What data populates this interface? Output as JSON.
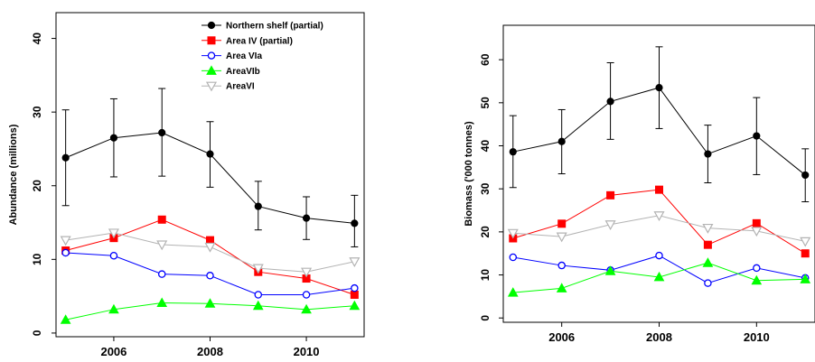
{
  "chart_data": [
    {
      "type": "line",
      "ylabel": "Abundance (millions)",
      "xlabel": "",
      "title": "",
      "x": [
        2005,
        2006,
        2007,
        2008,
        2009,
        2010,
        2011
      ],
      "x_ticks": [
        "2006",
        "2008",
        "2010"
      ],
      "y_ticks": [
        "0",
        "10",
        "20",
        "30",
        "40"
      ],
      "xlim": [
        2004.8,
        2011.2
      ],
      "ylim": [
        -0.5,
        43.5
      ],
      "grid": false,
      "legend": "top-right",
      "series": [
        {
          "name": "Northern shelf (partial)",
          "color": "#000000",
          "marker": "filled-circle",
          "values": [
            23.8,
            26.5,
            27.2,
            24.3,
            17.2,
            15.6,
            14.9
          ],
          "err_low": [
            17.3,
            21.2,
            21.3,
            19.8,
            14.0,
            12.7,
            11.7
          ],
          "err_high": [
            30.3,
            31.8,
            33.2,
            28.7,
            20.6,
            18.5,
            18.7
          ]
        },
        {
          "name": "Area IV (partial)",
          "color": "#ff0000",
          "marker": "filled-square",
          "values": [
            11.2,
            12.9,
            15.4,
            12.6,
            8.3,
            7.4,
            5.2
          ]
        },
        {
          "name": "Area VIa",
          "color": "#0000ff",
          "marker": "open-circle",
          "values": [
            10.9,
            10.5,
            8.0,
            7.8,
            5.2,
            5.2,
            6.1
          ]
        },
        {
          "name": "AreaVIb",
          "color": "#00ff00",
          "marker": "filled-triangle",
          "values": [
            1.8,
            3.2,
            4.1,
            4.0,
            3.7,
            3.2,
            3.7
          ]
        },
        {
          "name": "AreaVI",
          "color": "#b3b3b3",
          "marker": "open-triangle-down",
          "values": [
            12.6,
            13.6,
            12.0,
            11.7,
            8.8,
            8.3,
            9.7
          ]
        }
      ]
    },
    {
      "type": "line",
      "ylabel": "Biomass ('000 tonnes)",
      "xlabel": "",
      "title": "",
      "x": [
        2005,
        2006,
        2007,
        2008,
        2009,
        2010,
        2011
      ],
      "x_ticks": [
        "2006",
        "2008",
        "2010"
      ],
      "y_ticks": [
        "0",
        "10",
        "20",
        "30",
        "40",
        "50",
        "60"
      ],
      "xlim": [
        2004.8,
        2011.2
      ],
      "ylim": [
        -1,
        68
      ],
      "grid": false,
      "legend": "none",
      "series": [
        {
          "color": "#000000",
          "marker": "filled-circle",
          "values": [
            38.6,
            41.0,
            50.3,
            53.5,
            38.1,
            42.3,
            33.2
          ],
          "err_low": [
            30.3,
            33.5,
            41.5,
            44.0,
            31.4,
            33.3,
            27.0
          ],
          "err_high": [
            47.0,
            48.4,
            59.3,
            63.0,
            44.8,
            51.2,
            39.3
          ]
        },
        {
          "color": "#ff0000",
          "marker": "filled-square",
          "values": [
            18.5,
            21.9,
            28.5,
            29.8,
            17.0,
            22.0,
            15.0
          ]
        },
        {
          "color": "#0000ff",
          "marker": "open-circle",
          "values": [
            14.1,
            12.2,
            11.1,
            14.5,
            8.1,
            11.6,
            9.3
          ]
        },
        {
          "color": "#00ff00",
          "marker": "filled-triangle",
          "values": [
            5.9,
            6.9,
            10.9,
            9.5,
            12.8,
            8.7,
            9.0
          ]
        },
        {
          "color": "#b3b3b3",
          "marker": "open-triangle-down",
          "values": [
            19.7,
            18.9,
            21.7,
            23.8,
            20.9,
            20.2,
            17.8
          ]
        }
      ]
    }
  ]
}
